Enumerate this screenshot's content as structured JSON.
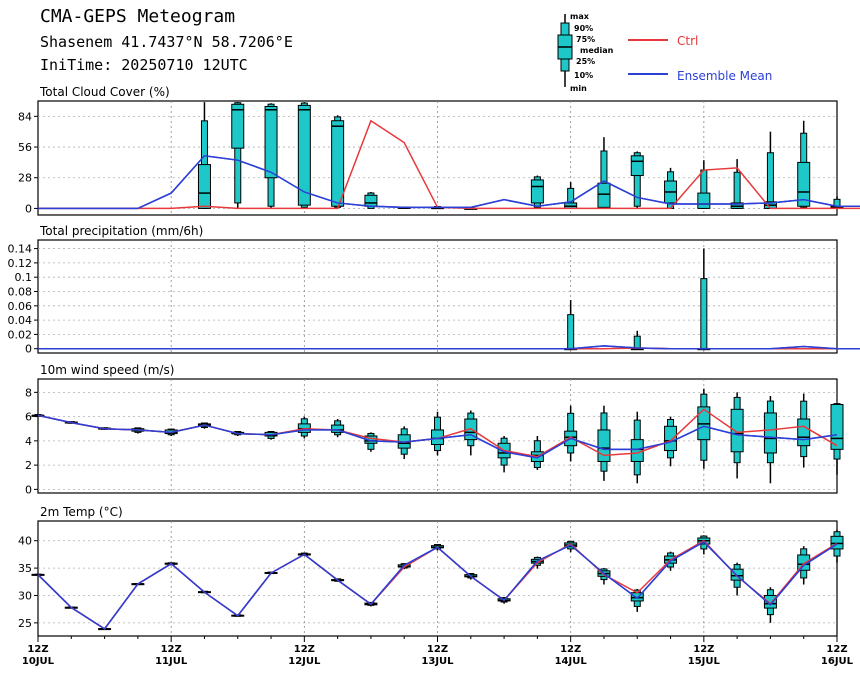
{
  "header": {
    "title": "CMA-GEPS Meteogram",
    "location": "Shasenem 41.7437°N 58.7206°E",
    "init_time": "IniTime: 20250710 12UTC"
  },
  "legend_box": {
    "labels": [
      "max",
      "90%",
      "75%",
      "median",
      "25%",
      "10%",
      "min"
    ]
  },
  "legend": {
    "ctrl": "Ctrl",
    "mean": "Ensemble Mean",
    "ctrl_color": "#e8383b",
    "mean_color": "#2c3fd6",
    "box_color": "#1ec8c8"
  },
  "x_axis": {
    "ticks": [
      {
        "top": "12Z",
        "bottom": "10JUL"
      },
      {
        "top": "12Z",
        "bottom": "11JUL"
      },
      {
        "top": "12Z",
        "bottom": "12JUL"
      },
      {
        "top": "12Z",
        "bottom": "13JUL"
      },
      {
        "top": "12Z",
        "bottom": "14JUL"
      },
      {
        "top": "12Z",
        "bottom": "15JUL"
      },
      {
        "top": "12Z",
        "bottom": "16JUL"
      }
    ]
  },
  "chart_data": [
    {
      "type": "box",
      "title": "Total Cloud Cover (%)",
      "ylim": [
        -6,
        98
      ],
      "yticks": [
        0,
        28,
        56,
        84
      ],
      "ytick_labels": [
        "0",
        "28",
        "56",
        "84"
      ],
      "x_step_hours": 6,
      "ctrl": [
        0,
        0,
        0,
        0,
        0,
        2,
        0,
        0,
        0,
        0,
        80,
        60,
        1,
        0,
        0,
        0,
        0,
        0,
        0,
        0,
        35,
        37,
        0,
        0,
        0,
        0,
        1,
        2,
        2,
        3
      ],
      "mean": [
        0,
        0,
        0,
        0,
        14,
        48,
        44,
        33,
        15,
        5,
        2,
        1,
        1,
        1,
        8,
        2,
        6,
        25,
        10,
        4,
        4,
        4,
        5,
        8,
        2,
        2,
        2,
        3
      ],
      "boxes": [
        [
          5,
          0,
          0,
          0,
          14,
          40,
          97
        ],
        [
          6,
          0,
          5,
          55,
          90,
          95,
          97
        ],
        [
          7,
          0,
          2,
          28,
          90,
          93,
          96
        ],
        [
          8,
          0,
          1,
          3,
          90,
          94,
          97
        ],
        [
          9,
          0,
          1,
          2,
          75,
          80,
          85
        ],
        [
          10,
          0,
          0,
          2,
          5,
          12,
          15
        ],
        [
          11,
          0,
          0,
          0,
          1,
          1,
          1
        ],
        [
          12,
          0,
          0,
          0,
          0,
          1,
          2
        ],
        [
          13,
          0,
          0,
          0,
          0,
          0,
          1
        ],
        [
          15,
          0,
          1,
          5,
          20,
          26,
          30
        ],
        [
          16,
          0,
          0,
          0,
          2,
          5,
          24
        ],
        [
          17,
          0,
          0,
          1,
          13,
          23,
          65
        ],
        [
          18,
          0,
          2,
          30,
          43,
          48,
          52
        ],
        [
          19,
          0,
          0,
          5,
          15,
          25,
          37
        ],
        [
          20,
          0,
          0,
          0,
          4,
          14,
          44
        ],
        [
          21,
          0,
          0,
          0,
          2,
          5,
          45
        ],
        [
          22,
          0,
          0,
          0,
          3,
          6,
          70
        ],
        [
          23,
          0,
          1,
          2,
          15,
          42,
          80
        ],
        [
          24,
          0,
          0,
          0,
          1,
          2,
          11
        ],
        [
          25,
          0,
          0,
          0,
          0,
          1,
          2
        ],
        [
          26,
          0,
          0,
          0,
          1,
          3,
          4
        ]
      ]
    },
    {
      "type": "box",
      "title": "Total precipitation (mm/6h)",
      "ylim": [
        -0.006,
        0.152
      ],
      "yticks": [
        0,
        0.02,
        0.04,
        0.06,
        0.08,
        0.1,
        0.12,
        0.14
      ],
      "ytick_labels": [
        "0",
        "0.02",
        "0.04",
        "0.06",
        "0.08",
        "0.1",
        "0.12",
        "0.14"
      ],
      "x_step_hours": 6,
      "ctrl": [
        0,
        0,
        0,
        0,
        0,
        0,
        0,
        0,
        0,
        0,
        0,
        0,
        0,
        0,
        0,
        0,
        0,
        0,
        0.001,
        0,
        0,
        0,
        0,
        0,
        0,
        0,
        0
      ],
      "mean": [
        0,
        0,
        0,
        0,
        0,
        0,
        0,
        0,
        0,
        0,
        0,
        0,
        0,
        0,
        0,
        0,
        0,
        0.004,
        0.001,
        0,
        0,
        0,
        0,
        0.003,
        0,
        0,
        0
      ],
      "boxes": [
        [
          16,
          0,
          0,
          0,
          0,
          0,
          0.068
        ],
        [
          18,
          0,
          0,
          0,
          0,
          0,
          0.025
        ],
        [
          20,
          0,
          0,
          0,
          0,
          0,
          0.14
        ]
      ]
    },
    {
      "type": "box",
      "title": "10m wind speed (m/s)",
      "ylim": [
        -0.3,
        9.1
      ],
      "yticks": [
        0,
        2,
        4,
        6,
        8
      ],
      "ytick_labels": [
        "0",
        "2",
        "4",
        "6",
        "8"
      ],
      "x_step_hours": 6,
      "ctrl": [
        6.1,
        5.5,
        5.0,
        4.9,
        4.7,
        5.3,
        4.6,
        4.5,
        5.0,
        4.9,
        4.2,
        3.9,
        4.2,
        5.0,
        3.2,
        2.7,
        4.3,
        2.8,
        3.0,
        4.0,
        6.6,
        4.7,
        4.9,
        5.2,
        3.6
      ],
      "mean": [
        6.1,
        5.5,
        5.0,
        4.9,
        4.7,
        5.3,
        4.6,
        4.5,
        4.9,
        4.9,
        4.0,
        3.9,
        4.2,
        4.5,
        3.1,
        2.6,
        4.2,
        3.3,
        3.3,
        3.9,
        5.2,
        4.5,
        4.3,
        4.1,
        4.5
      ],
      "boxes": [
        [
          0,
          6.1,
          6.1,
          6.1,
          6.1,
          6.1,
          6.2
        ],
        [
          1,
          5.4,
          5.45,
          5.5,
          5.5,
          5.55,
          5.6
        ],
        [
          2,
          4.9,
          4.95,
          5.0,
          5.0,
          5.05,
          5.1
        ],
        [
          3,
          4.6,
          4.7,
          4.8,
          4.9,
          5.0,
          5.1
        ],
        [
          4,
          4.4,
          4.5,
          4.6,
          4.7,
          4.9,
          5.0
        ],
        [
          5,
          5.0,
          5.1,
          5.2,
          5.3,
          5.4,
          5.5
        ],
        [
          6,
          4.4,
          4.5,
          4.6,
          4.6,
          4.7,
          4.8
        ],
        [
          7,
          4.1,
          4.2,
          4.4,
          4.5,
          4.7,
          4.8
        ],
        [
          8,
          4.2,
          4.4,
          4.7,
          5.0,
          5.4,
          6.0
        ],
        [
          9,
          4.3,
          4.5,
          4.7,
          4.9,
          5.3,
          5.8
        ],
        [
          10,
          3.1,
          3.3,
          3.8,
          4.0,
          4.4,
          4.7
        ],
        [
          11,
          2.5,
          2.9,
          3.4,
          3.8,
          4.5,
          5.2
        ],
        [
          12,
          2.8,
          3.2,
          3.7,
          4.2,
          4.9,
          6.4
        ],
        [
          13,
          2.8,
          3.6,
          4.1,
          4.7,
          5.8,
          6.5
        ],
        [
          14,
          1.4,
          2.0,
          2.6,
          3.0,
          3.8,
          4.4
        ],
        [
          15,
          1.6,
          1.8,
          2.3,
          2.8,
          3.1,
          4.4
        ],
        [
          16,
          2.3,
          3.0,
          3.6,
          4.3,
          4.8,
          6.9
        ],
        [
          17,
          0.7,
          1.5,
          2.3,
          3.4,
          4.9,
          6.9
        ],
        [
          18,
          0.5,
          1.2,
          2.3,
          3.3,
          4.1,
          6.4
        ],
        [
          19,
          1.9,
          2.6,
          3.2,
          4.0,
          5.2,
          6.0
        ],
        [
          20,
          1.7,
          2.4,
          4.1,
          5.4,
          6.8,
          8.3
        ],
        [
          21,
          0.9,
          2.2,
          3.1,
          4.6,
          6.6,
          8.0
        ],
        [
          22,
          0.5,
          2.2,
          3.0,
          4.2,
          6.3,
          7.7
        ],
        [
          23,
          1.8,
          2.7,
          3.6,
          4.3,
          5.8,
          7.9
        ],
        [
          24,
          1.2,
          2.5,
          3.3,
          4.2,
          7.0,
          7.1
        ]
      ]
    },
    {
      "type": "box",
      "title": "2m Temp (°C)",
      "ylim": [
        22.6,
        43.6
      ],
      "yticks": [
        25,
        30,
        35,
        40
      ],
      "ytick_labels": [
        "25",
        "30",
        "35",
        "40"
      ],
      "x_step_hours": 6,
      "ctrl": [
        33.8,
        27.8,
        23.9,
        32.1,
        35.8,
        30.6,
        26.3,
        34.1,
        37.5,
        32.8,
        28.4,
        35.2,
        38.8,
        33.5,
        29.1,
        36.0,
        39.4,
        33.8,
        30.5,
        36.5,
        40.0,
        33.5,
        28.5,
        35.8,
        39.5
      ],
      "mean": [
        33.8,
        27.8,
        23.9,
        32.1,
        35.8,
        30.6,
        26.3,
        34.1,
        37.5,
        32.8,
        28.4,
        35.5,
        38.8,
        33.5,
        29.1,
        36.3,
        39.2,
        34.0,
        29.5,
        36.3,
        39.8,
        33.6,
        28.3,
        35.5,
        39.4
      ],
      "boxes": [
        [
          0,
          33.7,
          33.75,
          33.8,
          33.8,
          33.85,
          33.9
        ],
        [
          1,
          27.7,
          27.75,
          27.8,
          27.8,
          27.85,
          27.9
        ],
        [
          2,
          23.8,
          23.85,
          23.9,
          23.9,
          23.95,
          24.0
        ],
        [
          3,
          32.0,
          32.05,
          32.1,
          32.1,
          32.15,
          32.2
        ],
        [
          4,
          35.5,
          35.6,
          35.7,
          35.8,
          35.9,
          36.0
        ],
        [
          5,
          30.4,
          30.5,
          30.6,
          30.6,
          30.7,
          30.8
        ],
        [
          6,
          26.1,
          26.2,
          26.3,
          26.3,
          26.4,
          26.5
        ],
        [
          7,
          33.9,
          34.0,
          34.1,
          34.1,
          34.2,
          34.3
        ],
        [
          8,
          37.2,
          37.3,
          37.4,
          37.5,
          37.6,
          37.8
        ],
        [
          9,
          32.5,
          32.6,
          32.7,
          32.8,
          32.9,
          33.1
        ],
        [
          10,
          28.0,
          28.2,
          28.3,
          28.4,
          28.6,
          28.8
        ],
        [
          11,
          34.8,
          35.0,
          35.2,
          35.3,
          35.6,
          35.9
        ],
        [
          12,
          38.2,
          38.5,
          38.7,
          38.8,
          39.1,
          39.4
        ],
        [
          13,
          32.9,
          33.2,
          33.4,
          33.5,
          33.8,
          34.1
        ],
        [
          14,
          28.5,
          28.8,
          29.0,
          29.1,
          29.4,
          29.7
        ],
        [
          15,
          34.9,
          35.5,
          35.9,
          36.2,
          36.6,
          37.1
        ],
        [
          16,
          37.9,
          38.5,
          38.9,
          39.2,
          39.6,
          40.0
        ],
        [
          17,
          32.0,
          32.9,
          33.5,
          34.0,
          34.5,
          35.0
        ],
        [
          18,
          27.0,
          28.0,
          29.0,
          29.6,
          30.5,
          31.2
        ],
        [
          19,
          34.5,
          35.2,
          35.9,
          36.5,
          37.2,
          38.0
        ],
        [
          20,
          37.5,
          38.5,
          39.4,
          40.0,
          40.5,
          41.0
        ],
        [
          21,
          30.0,
          31.5,
          32.8,
          33.6,
          34.8,
          36.0
        ],
        [
          22,
          25.0,
          26.5,
          27.7,
          28.5,
          30.0,
          31.5
        ],
        [
          23,
          32.0,
          33.2,
          34.6,
          35.7,
          37.4,
          39.0
        ],
        [
          24,
          36.0,
          37.2,
          38.5,
          39.5,
          40.8,
          42.0
        ]
      ]
    }
  ]
}
